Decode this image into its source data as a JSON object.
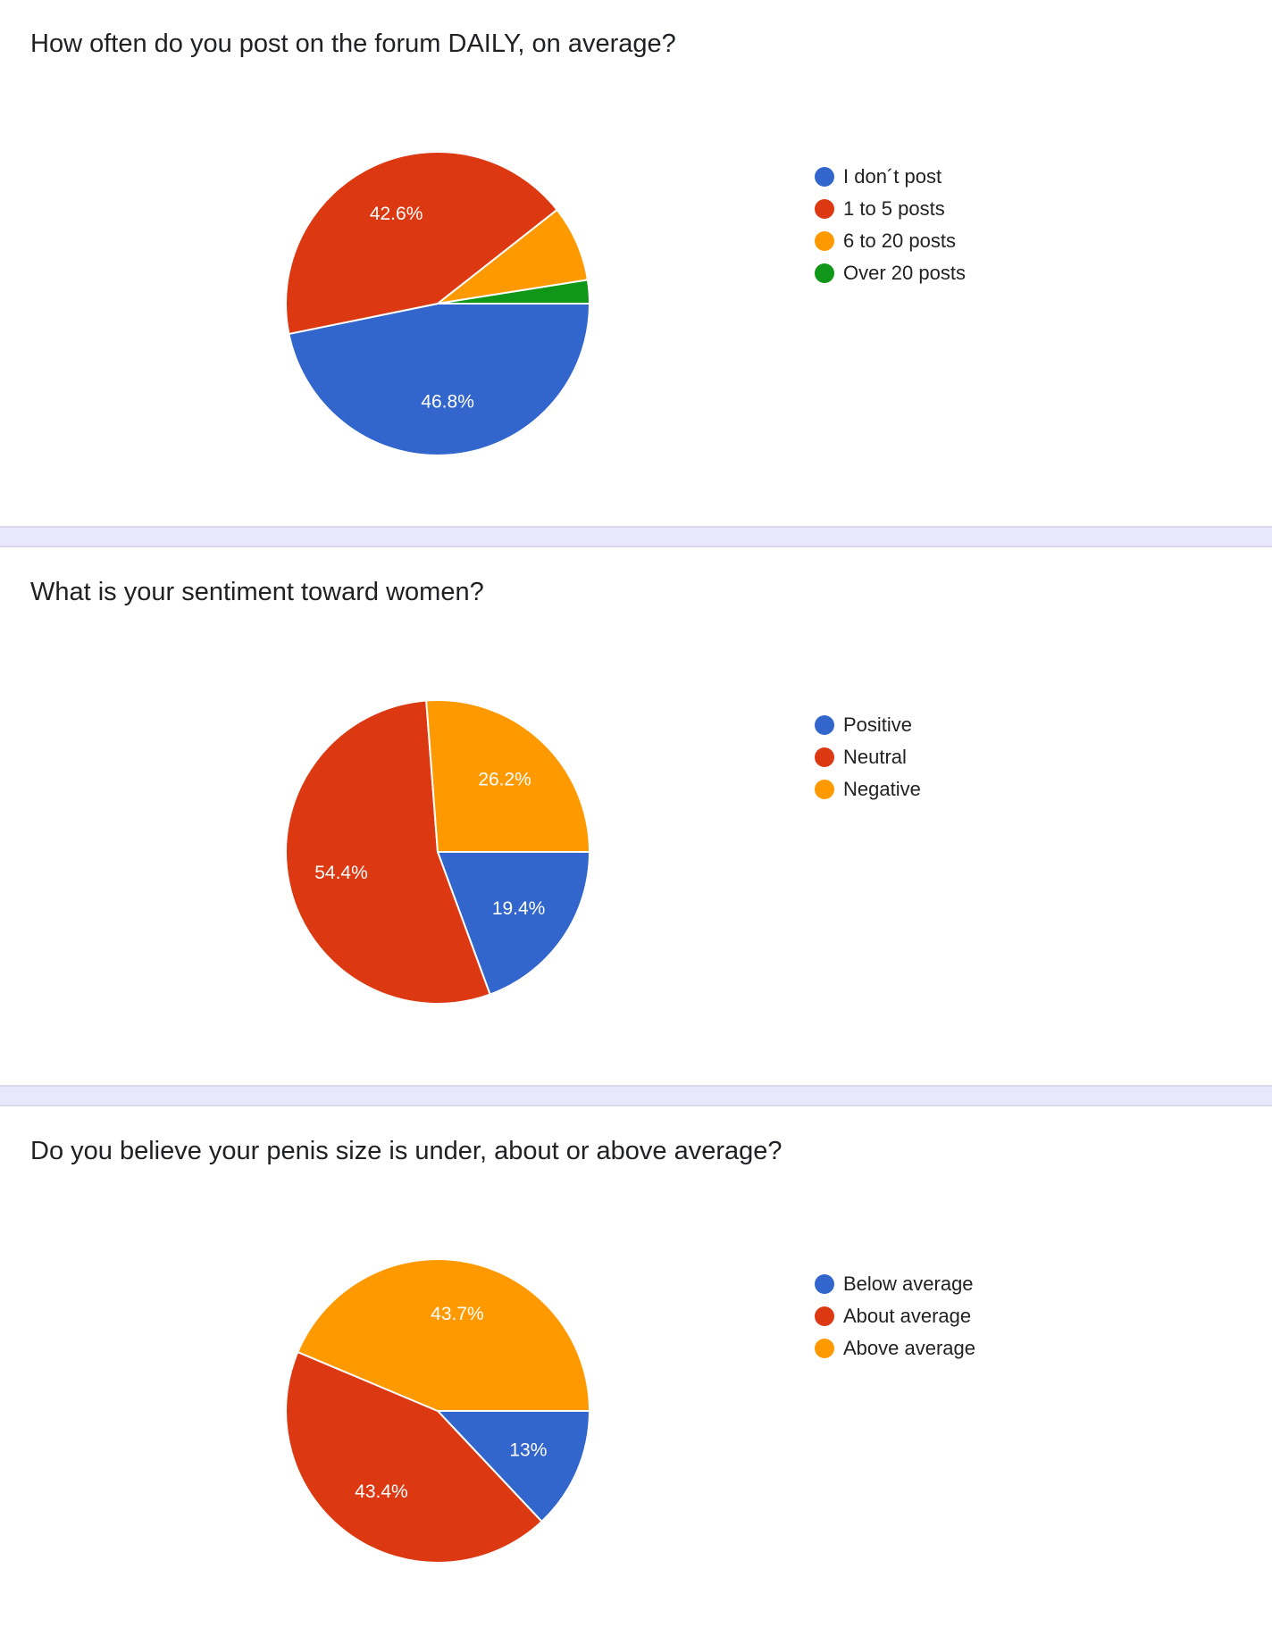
{
  "chart_data": [
    {
      "type": "pie",
      "title": "How often do you post on the forum DAILY, on average?",
      "categories": [
        "I don´t post",
        "1 to 5 posts",
        "6 to 20 posts",
        "Over 20 posts"
      ],
      "values": [
        46.8,
        42.6,
        8.1,
        2.5
      ],
      "labels": [
        "46.8%",
        "42.6%",
        "",
        ""
      ],
      "colors": [
        "#3366cc",
        "#dc3912",
        "#ff9900",
        "#109618"
      ],
      "legend_position": "right"
    },
    {
      "type": "pie",
      "title": "What is your sentiment toward women?",
      "categories": [
        "Positive",
        "Neutral",
        "Negative"
      ],
      "values": [
        19.4,
        54.4,
        26.2
      ],
      "labels": [
        "19.4%",
        "54.4%",
        "26.2%"
      ],
      "colors": [
        "#3366cc",
        "#dc3912",
        "#ff9900"
      ],
      "legend_position": "right"
    },
    {
      "type": "pie",
      "title": "Do you believe your penis size is under, about or above average?",
      "categories": [
        "Below average",
        "About average",
        "Above average"
      ],
      "values": [
        13,
        43.4,
        43.7
      ],
      "labels": [
        "13%",
        "43.4%",
        "43.7%"
      ],
      "colors": [
        "#3366cc",
        "#dc3912",
        "#ff9900"
      ],
      "legend_position": "right"
    }
  ]
}
